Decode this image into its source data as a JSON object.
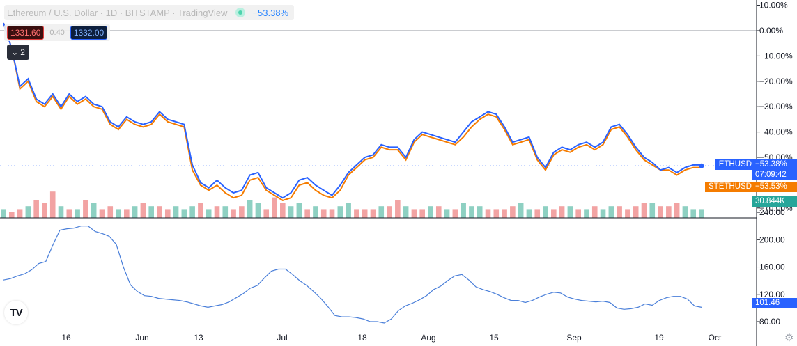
{
  "legend": {
    "symbol_title": "Ethereum / U.S. Dollar · 1D · BITSTAMP · TradingView",
    "change": "−53.38%"
  },
  "quote": {
    "bid": "1331.60",
    "spread": "0.40",
    "ask": "1332.00"
  },
  "collapse_count": "2",
  "badges": {
    "ethusd_name": "ETHUSD",
    "ethusd_value": "−53.38%",
    "countdown": "07:09:42",
    "stethusd_name": "STETHUSD",
    "stethusd_value": "−53.53%",
    "volume": "30.844K",
    "indicator": "101.46"
  },
  "colors": {
    "ethusd": "#2962ff",
    "stethusd": "#f57c00",
    "vol_up": "#8ed0c2",
    "vol_down": "#f2a3a3",
    "indicator": "#4a7fd9"
  },
  "chart_data": [
    {
      "type": "line",
      "x_ticks": [
        "16",
        "Jun",
        "13",
        "Jul",
        "18",
        "Aug",
        "15",
        "Sep",
        "19",
        "Oct"
      ],
      "y_ticks": [
        "10.00%",
        "0.00%",
        "−10.00%",
        "−20.00%",
        "−30.00%",
        "−40.00%",
        "−50.00%",
        "−70.00%"
      ],
      "ylim": [
        -75,
        10
      ],
      "series": [
        {
          "name": "ETHUSD",
          "values": [
            3,
            -7,
            -22,
            -19,
            -27,
            -29,
            -25,
            -30,
            -25,
            -28,
            -26,
            -29,
            -30,
            -36,
            -38,
            -34,
            -36,
            -37,
            -36,
            -32,
            -35,
            -36,
            -37,
            -53,
            -60,
            -62,
            -59,
            -62,
            -64,
            -63,
            -57,
            -56,
            -62,
            -64,
            -66,
            -64,
            -59,
            -58,
            -61,
            -63,
            -65,
            -61,
            -56,
            -53,
            -50,
            -49,
            -45,
            -46,
            -46,
            -50,
            -43,
            -40,
            -41,
            -42,
            -43,
            -44,
            -40,
            -36,
            -34,
            -32,
            -33,
            -38,
            -44,
            -43,
            -42,
            -50,
            -54,
            -48,
            -46,
            -47,
            -45,
            -44,
            -46,
            -44,
            -38,
            -37,
            -41,
            -46,
            -50,
            -52,
            -55,
            -54,
            -56,
            -54,
            -53,
            -53
          ],
          "last": -53.38
        },
        {
          "name": "STETHUSD",
          "values": [
            3,
            -7,
            -23,
            -20,
            -28,
            -30,
            -26,
            -31,
            -26,
            -29,
            -27,
            -30,
            -31,
            -37,
            -39,
            -35,
            -37,
            -38,
            -37,
            -33,
            -36,
            -37,
            -38,
            -55,
            -61,
            -63,
            -61,
            -64,
            -66,
            -65,
            -59,
            -58,
            -63,
            -65,
            -67,
            -66,
            -61,
            -60,
            -63,
            -65,
            -66,
            -63,
            -57,
            -54,
            -51,
            -50,
            -46,
            -47,
            -47,
            -51,
            -44,
            -41,
            -42,
            -43,
            -44,
            -45,
            -42,
            -38,
            -35,
            -33,
            -34,
            -39,
            -45,
            -44,
            -43,
            -51,
            -55,
            -49,
            -47,
            -48,
            -46,
            -45,
            -47,
            -45,
            -39,
            -38,
            -42,
            -47,
            -51,
            -53,
            -55,
            -55,
            -57,
            -55,
            -54,
            -54
          ],
          "last": -53.53
        }
      ]
    },
    {
      "type": "bar",
      "name": "Volume",
      "last": "30.844K",
      "values": [
        3,
        2,
        3,
        4,
        6,
        5,
        9,
        4,
        3,
        3,
        6,
        5,
        3,
        4,
        3,
        3,
        4,
        5,
        4,
        4,
        3,
        4,
        3,
        4,
        5,
        3,
        4,
        4,
        3,
        4,
        6,
        5,
        3,
        7,
        5,
        4,
        5,
        3,
        4,
        3,
        3,
        4,
        5,
        3,
        3,
        3,
        4,
        4,
        6,
        4,
        3,
        3,
        4,
        4,
        3,
        3,
        5,
        4,
        4,
        3,
        3,
        3,
        4,
        5,
        3,
        3,
        4,
        3,
        4,
        4,
        3,
        3,
        4,
        3,
        4,
        4,
        3,
        4,
        5,
        5,
        4,
        4,
        5,
        4,
        3,
        3
      ],
      "direction": [
        "u",
        "d",
        "d",
        "u",
        "d",
        "d",
        "d",
        "u",
        "d",
        "u",
        "d",
        "u",
        "d",
        "d",
        "u",
        "d",
        "u",
        "d",
        "u",
        "d",
        "d",
        "u",
        "u",
        "u",
        "d",
        "u",
        "d",
        "u",
        "d",
        "d",
        "u",
        "u",
        "d",
        "d",
        "d",
        "u",
        "u",
        "d",
        "u",
        "d",
        "d",
        "u",
        "u",
        "d",
        "d",
        "d",
        "u",
        "d",
        "d",
        "u",
        "d",
        "d",
        "u",
        "d",
        "u",
        "d",
        "u",
        "u",
        "u",
        "d",
        "d",
        "d",
        "d",
        "u",
        "u",
        "d",
        "u",
        "d",
        "d",
        "u",
        "d",
        "u",
        "d",
        "u",
        "u",
        "d",
        "d",
        "d",
        "d",
        "u",
        "d",
        "d",
        "d",
        "u",
        "u",
        "u"
      ]
    },
    {
      "type": "line",
      "name": "Indicator",
      "y_ticks": [
        "240.00",
        "200.00",
        "160.00",
        "120.00",
        "80.00"
      ],
      "ylim": [
        74,
        240
      ],
      "values": [
        141,
        143,
        147,
        150,
        156,
        165,
        168,
        192,
        214,
        216,
        217,
        220,
        220,
        212,
        209,
        205,
        193,
        160,
        134,
        124,
        118,
        117,
        114,
        113,
        112,
        111,
        109,
        106,
        103,
        101,
        103,
        105,
        109,
        115,
        121,
        129,
        133,
        144,
        154,
        157,
        157,
        149,
        140,
        133,
        124,
        114,
        102,
        89,
        87,
        87,
        86,
        84,
        80,
        80,
        78,
        84,
        96,
        103,
        107,
        112,
        118,
        127,
        132,
        140,
        147,
        149,
        141,
        131,
        127,
        124,
        120,
        115,
        111,
        111,
        108,
        111,
        116,
        120,
        123,
        122,
        116,
        113,
        111,
        110,
        109,
        110,
        108,
        100,
        98,
        99,
        101,
        106,
        104,
        111,
        115,
        117,
        117,
        113,
        103,
        101
      ],
      "last": 101.46
    }
  ]
}
